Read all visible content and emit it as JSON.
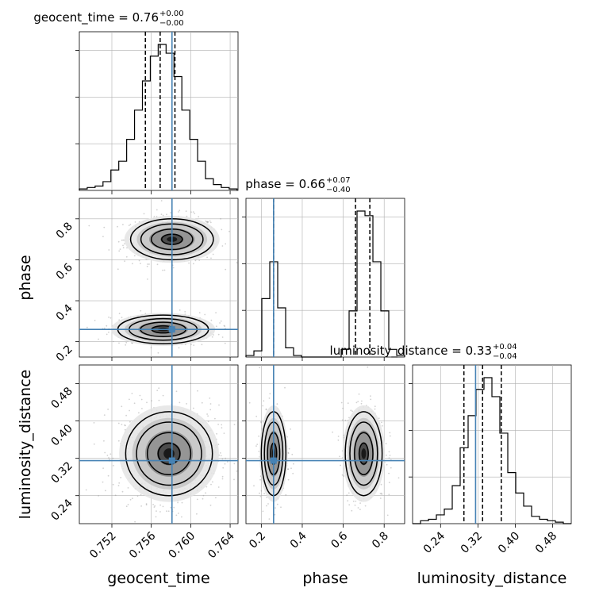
{
  "chart_data": {
    "type": "corner",
    "parameters": [
      "geocent_time",
      "phase",
      "luminosity_distance"
    ],
    "truths": {
      "geocent_time": 0.7581,
      "phase": 0.26,
      "luminosity_distance": 0.315
    },
    "panel_titles": {
      "geocent_time": {
        "name": "geocent_time",
        "median": "0.76",
        "plus": "+0.00",
        "minus": "−0.00"
      },
      "phase": {
        "name": "phase",
        "median": "0.66",
        "plus": "+0.07",
        "minus": "−0.40"
      },
      "luminosity_distance": {
        "name": "luminosity_distance",
        "median": "0.33",
        "plus": "+0.04",
        "minus": "−0.04"
      }
    },
    "axes": {
      "geocent_time": {
        "label": "geocent_time",
        "range": [
          0.7487,
          0.7648
        ],
        "ticks": [
          0.752,
          0.756,
          0.76,
          0.764
        ],
        "tick_labels": [
          "0.752",
          "0.756",
          "0.760",
          "0.764"
        ]
      },
      "phase": {
        "label": "phase",
        "range": [
          0.125,
          0.9
        ],
        "ticks": [
          0.2,
          0.4,
          0.6,
          0.8
        ],
        "tick_labels": [
          "0.2",
          "0.4",
          "0.6",
          "0.8"
        ]
      },
      "luminosity_distance": {
        "label": "luminosity_distance",
        "range": [
          0.18,
          0.52
        ],
        "ticks": [
          0.24,
          0.32,
          0.4,
          0.48
        ],
        "tick_labels": [
          "0.24",
          "0.32",
          "0.40",
          "0.48"
        ]
      }
    },
    "histograms": {
      "geocent_time": {
        "bins": [
          0.7487,
          0.7495,
          0.7503,
          0.7511,
          0.7519,
          0.7527,
          0.7535,
          0.7543,
          0.7551,
          0.7559,
          0.7567,
          0.7575,
          0.7583,
          0.7591,
          0.7599,
          0.7607,
          0.7615,
          0.7623,
          0.7631,
          0.7639,
          0.7647
        ],
        "counts": [
          1,
          2,
          3,
          6,
          14,
          20,
          35,
          55,
          75,
          92,
          100,
          94,
          78,
          55,
          35,
          20,
          8,
          4,
          2,
          1
        ],
        "quantiles": [
          0.7554,
          0.7569,
          0.7584
        ]
      },
      "phase": {
        "bins": [
          0.125,
          0.1638,
          0.2025,
          0.2413,
          0.28,
          0.3188,
          0.3575,
          0.3963,
          0.435,
          0.4738,
          0.5125,
          0.5513,
          0.59,
          0.6288,
          0.6675,
          0.7063,
          0.745,
          0.7838,
          0.8225,
          0.8613,
          0.9
        ],
        "counts": [
          1,
          4,
          38,
          62,
          32,
          6,
          1,
          0,
          0,
          0,
          0,
          0,
          5,
          30,
          95,
          92,
          62,
          30,
          5,
          1
        ],
        "quantiles": [
          0.26,
          0.66,
          0.73
        ]
      },
      "luminosity_distance": {
        "bins": [
          0.18,
          0.197,
          0.214,
          0.231,
          0.248,
          0.265,
          0.282,
          0.299,
          0.316,
          0.333,
          0.35,
          0.367,
          0.384,
          0.401,
          0.418,
          0.435,
          0.452,
          0.469,
          0.486,
          0.503,
          0.52
        ],
        "counts": [
          0,
          2,
          3,
          6,
          10,
          26,
          52,
          74,
          92,
          100,
          87,
          62,
          35,
          21,
          12,
          5,
          3,
          2,
          1,
          0
        ],
        "quantiles": [
          0.29,
          0.33,
          0.37
        ]
      }
    },
    "joint": {
      "phase_vs_geocent_time": {
        "modes": [
          {
            "mx": 0.7581,
            "my": 0.7,
            "sx": 0.0021,
            "sy": 0.05,
            "w": 0.58
          },
          {
            "mx": 0.7572,
            "my": 0.26,
            "sx": 0.0023,
            "sy": 0.035,
            "w": 0.42
          }
        ]
      },
      "luminosity_distance_vs_geocent_time": {
        "modes": [
          {
            "mx": 0.7578,
            "my": 0.33,
            "sx": 0.0022,
            "sy": 0.045,
            "w": 1.0
          }
        ]
      },
      "luminosity_distance_vs_phase": {
        "modes": [
          {
            "mx": 0.26,
            "my": 0.33,
            "sx": 0.03,
            "sy": 0.045,
            "w": 0.4
          },
          {
            "mx": 0.7,
            "my": 0.33,
            "sx": 0.045,
            "sy": 0.045,
            "w": 0.6
          }
        ]
      }
    },
    "grid": true,
    "colors": {
      "truth": "#4682b4",
      "hist": "#000000",
      "points": "#9a9a9a",
      "grid": "#b0b0b0"
    }
  }
}
